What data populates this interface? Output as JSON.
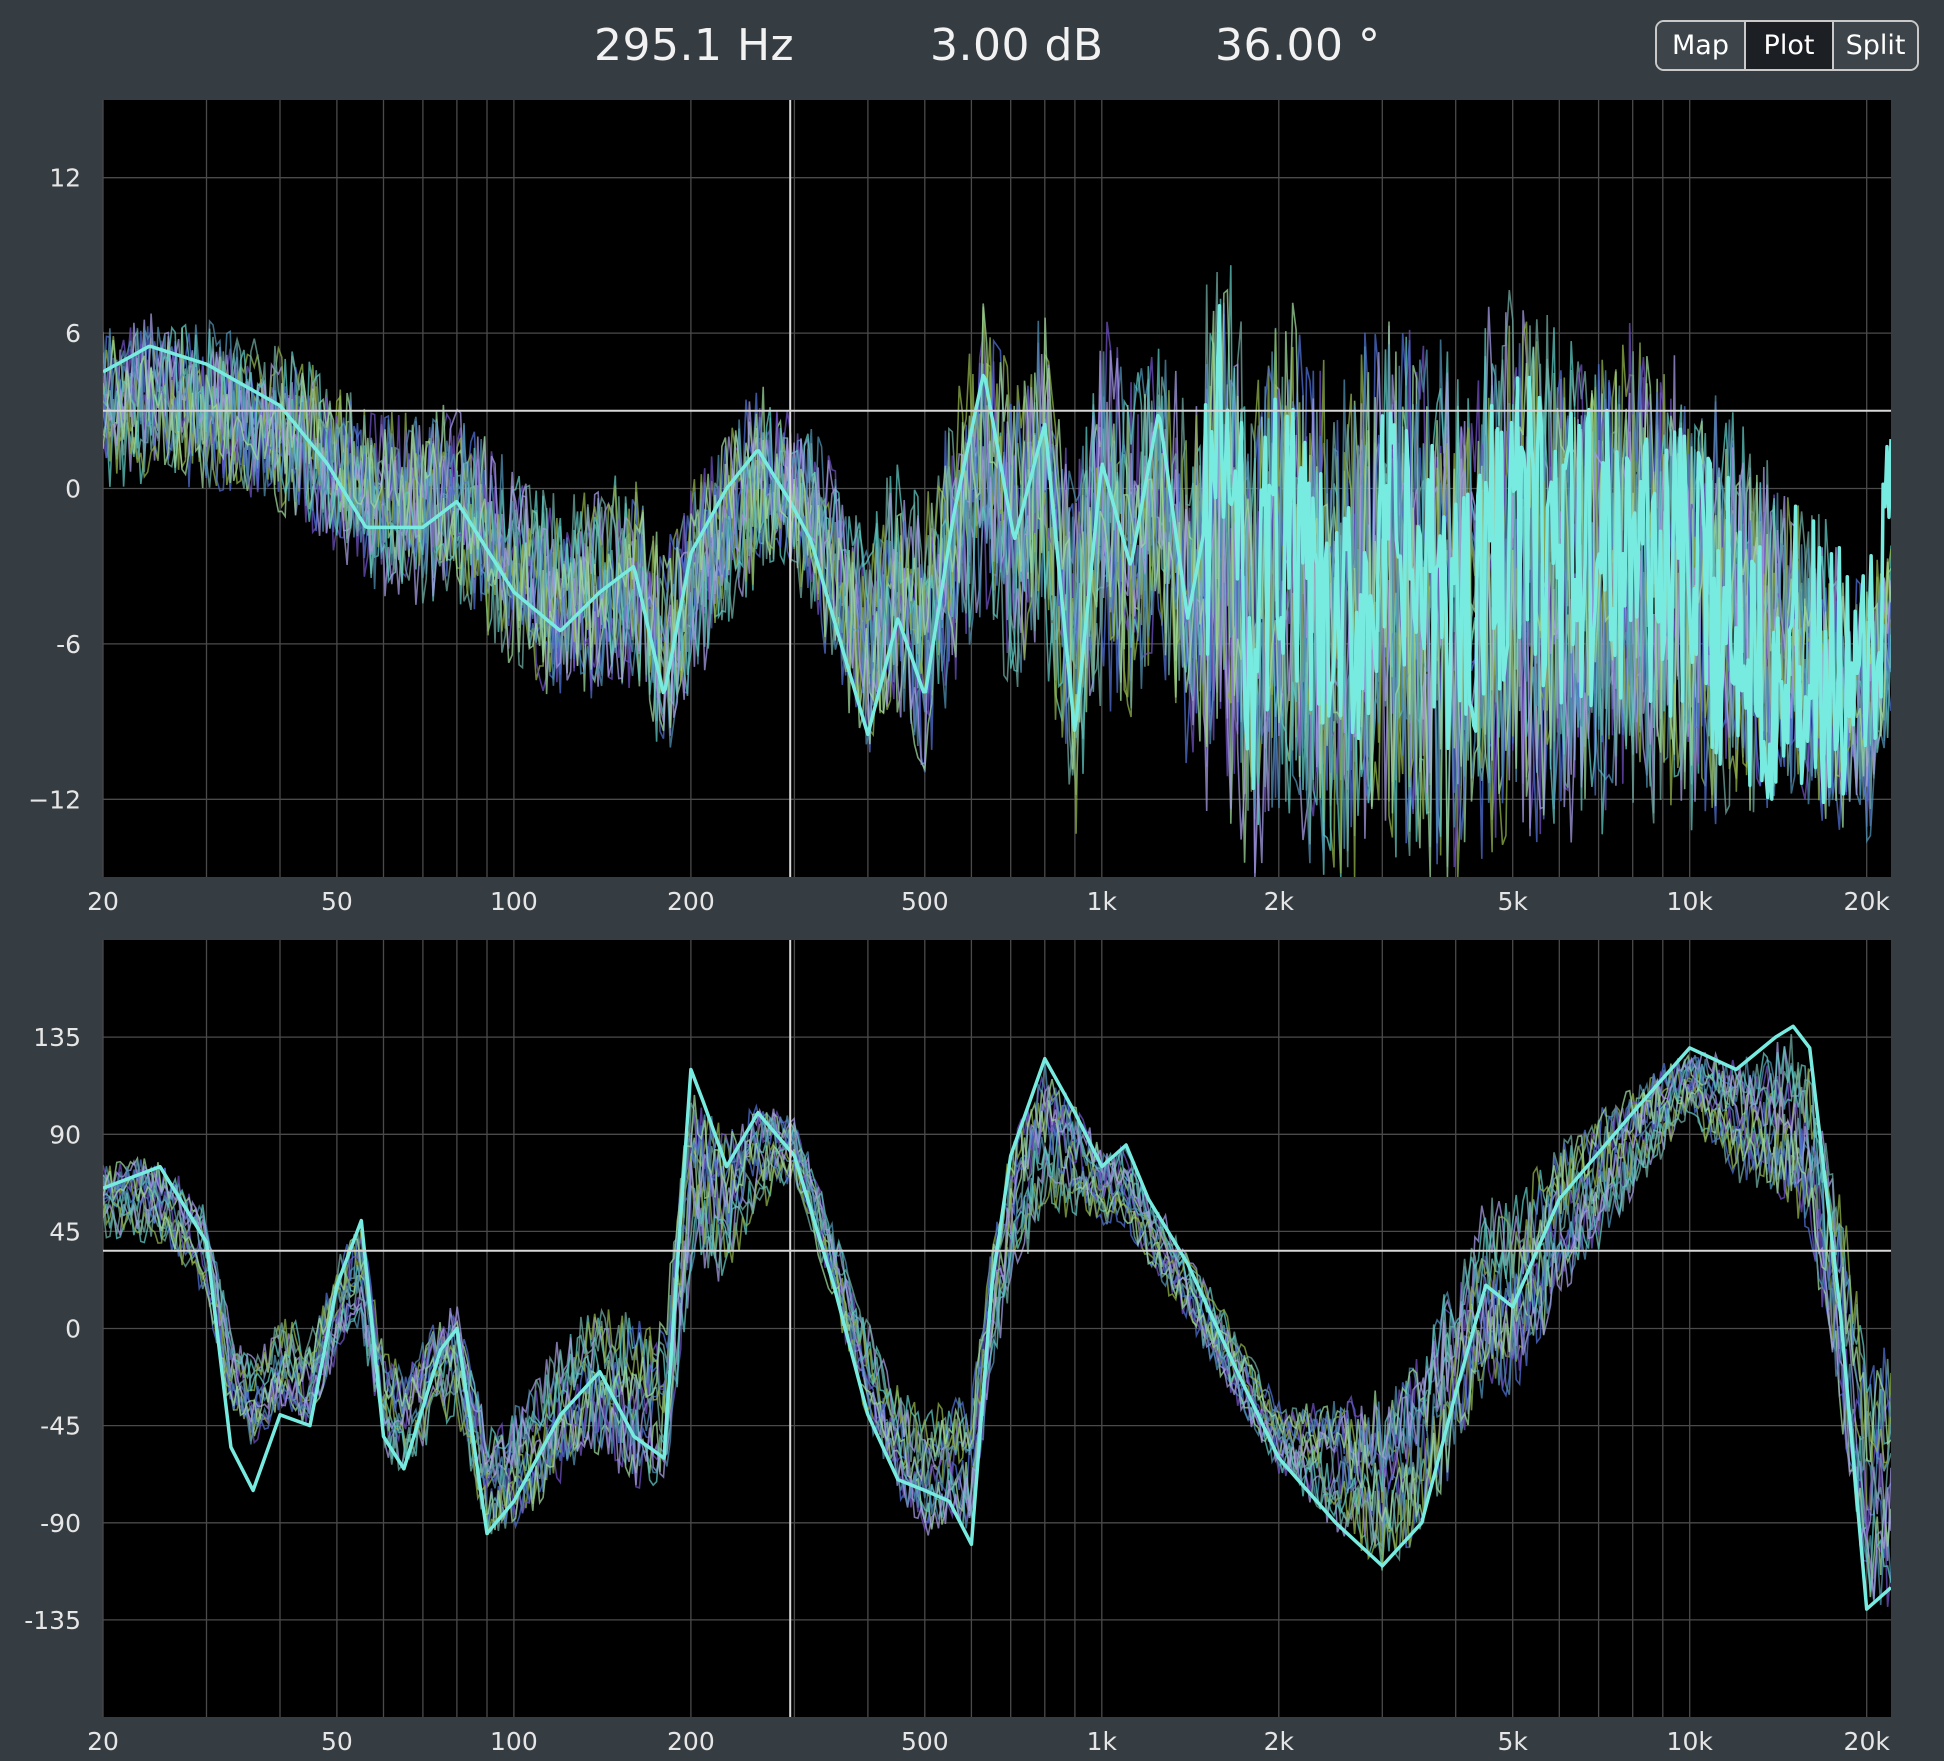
{
  "readout": {
    "frequency": "295.1 Hz",
    "gain": "3.00 dB",
    "angle": "36.00 °"
  },
  "view_toggle": {
    "options": [
      "Map",
      "Plot",
      "Split"
    ],
    "selected": "Plot"
  },
  "colors": {
    "background": "#353c42",
    "plot_bg": "#000000",
    "grid": "#4a4a4a",
    "highlight_trace": "#78ebe0",
    "trace_palette": [
      "#6d4fbf",
      "#4d6fd0",
      "#8fb04a",
      "#6fa9a0",
      "#5ec7c0",
      "#a39be0",
      "#4f8fb0",
      "#9ed89a"
    ]
  },
  "chart_data": [
    {
      "type": "line",
      "name": "magnitude",
      "xscale": "log",
      "xlim": [
        20,
        22000
      ],
      "ylim": [
        -15,
        15
      ],
      "x_ticks": [
        20,
        50,
        100,
        200,
        500,
        1000,
        2000,
        5000,
        10000,
        20000
      ],
      "x_tick_labels": [
        "20",
        "50",
        "100",
        "200",
        "500",
        "1k",
        "2k",
        "5k",
        "10k",
        "20k"
      ],
      "y_ticks": [
        12,
        6,
        0,
        -6,
        -12
      ],
      "y_tick_labels": [
        "12",
        "6",
        "0",
        "-6",
        "−12"
      ],
      "cursor": {
        "x": 295.1,
        "y": 3.0
      },
      "highlight_series": {
        "x": [
          20,
          24,
          30,
          40,
          48,
          56,
          70,
          80,
          100,
          120,
          140,
          160,
          180,
          200,
          230,
          260,
          295,
          320,
          360,
          400,
          450,
          500,
          560,
          630,
          710,
          800,
          900,
          1000,
          1120,
          1250,
          1400,
          1600,
          1800,
          2000,
          2500,
          3000,
          4000,
          5000,
          6300,
          8000,
          10000,
          12500,
          16000,
          20000,
          22000
        ],
        "y": [
          4.5,
          5.5,
          4.8,
          3.2,
          1.0,
          -1.5,
          -1.5,
          -0.5,
          -4.0,
          -5.5,
          -4.0,
          -3.0,
          -8.0,
          -2.5,
          0.0,
          1.5,
          -0.5,
          -2.0,
          -6.0,
          -9.5,
          -5.0,
          -8.0,
          -1.0,
          4.5,
          -2.0,
          2.5,
          -9.5,
          1.0,
          -3.0,
          3.0,
          -5.0,
          2.0,
          -6.0,
          -1.0,
          -7.0,
          -2.5,
          -5.0,
          -1.0,
          -3.0,
          -2.0,
          -4.0,
          -5.5,
          -7.0,
          -9.0,
          -1.0
        ]
      },
      "envelope": {
        "x": [
          20,
          50,
          100,
          200,
          295,
          500,
          1000,
          2000,
          5000,
          10000,
          15000,
          20000,
          22000
        ],
        "upper": [
          5,
          6,
          3.5,
          0,
          5,
          4,
          7,
          4,
          3.5,
          3,
          0,
          -4,
          -8
        ],
        "lower": [
          -3,
          -3,
          -7,
          -11,
          -4,
          -10,
          -12,
          -13,
          -14,
          -12,
          -10,
          -13,
          -14
        ]
      }
    },
    {
      "type": "line",
      "name": "phase",
      "xscale": "log",
      "xlim": [
        20,
        22000
      ],
      "ylim": [
        -180,
        180
      ],
      "x_ticks": [
        20,
        50,
        100,
        200,
        500,
        1000,
        2000,
        5000,
        10000,
        20000
      ],
      "x_tick_labels": [
        "20",
        "50",
        "100",
        "200",
        "500",
        "1k",
        "2k",
        "5k",
        "10k",
        "20k"
      ],
      "y_ticks": [
        135,
        90,
        45,
        0,
        -45,
        -90,
        -135
      ],
      "y_tick_labels": [
        "135",
        "90",
        "45",
        "0",
        "-45",
        "-90",
        "-135"
      ],
      "cursor": {
        "x": 295.1,
        "y": 36.0
      },
      "highlight_series": {
        "x": [
          20,
          25,
          30,
          33,
          36,
          40,
          45,
          50,
          55,
          60,
          65,
          75,
          80,
          90,
          100,
          120,
          140,
          160,
          180,
          200,
          210,
          230,
          260,
          300,
          350,
          400,
          450,
          500,
          550,
          600,
          650,
          700,
          800,
          900,
          1000,
          1100,
          1200,
          1400,
          1700,
          2000,
          2500,
          3000,
          3500,
          4000,
          4500,
          5000,
          6000,
          8000,
          10000,
          12000,
          14000,
          15000,
          16000,
          18000,
          20000,
          22000
        ],
        "y": [
          65,
          75,
          40,
          -55,
          -75,
          -40,
          -45,
          20,
          50,
          -50,
          -65,
          -10,
          0,
          -95,
          -80,
          -40,
          -20,
          -50,
          -60,
          120,
          105,
          75,
          100,
          80,
          20,
          -40,
          -70,
          -75,
          -80,
          -100,
          20,
          80,
          125,
          100,
          75,
          85,
          60,
          30,
          -20,
          -60,
          -90,
          -110,
          -90,
          -30,
          20,
          10,
          60,
          100,
          130,
          120,
          135,
          140,
          130,
          10,
          -130,
          -120
        ]
      },
      "envelope": {
        "x": [
          20,
          50,
          100,
          200,
          300,
          500,
          800,
          1000,
          2000,
          3000,
          5000,
          10000,
          20000,
          22000
        ],
        "upper": [
          100,
          55,
          20,
          115,
          125,
          10,
          130,
          100,
          0,
          80,
          130,
          135,
          145,
          140
        ],
        "lower": [
          10,
          -60,
          -115,
          -110,
          50,
          -130,
          -40,
          10,
          -80,
          -130,
          -90,
          50,
          -140,
          -150
        ]
      }
    }
  ]
}
